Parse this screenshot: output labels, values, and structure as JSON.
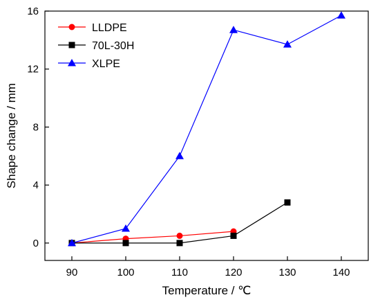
{
  "chart_data": {
    "type": "line",
    "xlabel": "Temperature / ℃",
    "ylabel": "Shape change / mm",
    "xlim": [
      85,
      145
    ],
    "ylim": [
      -1.2,
      16
    ],
    "x_ticks": [
      90,
      100,
      110,
      120,
      130,
      140
    ],
    "y_ticks": [
      0,
      4,
      8,
      12,
      16
    ],
    "legend_position": "top-left",
    "grid": false,
    "series": [
      {
        "name": "LLDPE",
        "color": "#ff0000",
        "marker": "circle",
        "x": [
          90,
          100,
          110,
          120
        ],
        "y": [
          0,
          0.3,
          0.5,
          0.8
        ]
      },
      {
        "name": "70L-30H",
        "color": "#000000",
        "marker": "square",
        "x": [
          90,
          100,
          110,
          120,
          130
        ],
        "y": [
          0,
          0,
          0,
          0.5,
          2.8
        ]
      },
      {
        "name": "XLPE",
        "color": "#0000ff",
        "marker": "triangle",
        "x": [
          90,
          100,
          110,
          120,
          130,
          140
        ],
        "y": [
          0,
          1.0,
          6.0,
          14.7,
          13.7,
          15.7
        ]
      }
    ]
  }
}
